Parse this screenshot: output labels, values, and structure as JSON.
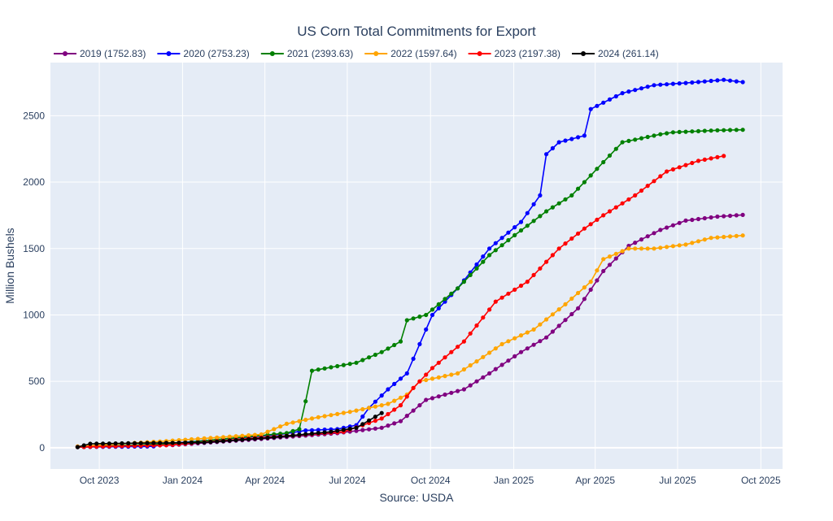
{
  "chart_data": {
    "type": "line",
    "title": "US Corn Total Commitments for Export",
    "xlabel": "Source: USDA",
    "ylabel": "Million Bushels",
    "ylim": [
      -160,
      2900
    ],
    "xlim": [
      "2023-08-08",
      "2025-10-25"
    ],
    "x_ticks": [
      {
        "date": "2023-10-01",
        "label": "Oct 2023"
      },
      {
        "date": "2024-01-01",
        "label": "Jan 2024"
      },
      {
        "date": "2024-04-01",
        "label": "Apr 2024"
      },
      {
        "date": "2024-07-01",
        "label": "Jul 2024"
      },
      {
        "date": "2024-10-01",
        "label": "Oct 2024"
      },
      {
        "date": "2025-01-01",
        "label": "Jan 2025"
      },
      {
        "date": "2025-04-01",
        "label": "Apr 2025"
      },
      {
        "date": "2025-07-01",
        "label": "Jul 2025"
      },
      {
        "date": "2025-10-01",
        "label": "Oct 2025"
      }
    ],
    "y_ticks": [
      0,
      500,
      1000,
      1500,
      2000,
      2500
    ],
    "grid": true,
    "legend_position": "top-left",
    "series": [
      {
        "name": "2019 (1752.83)",
        "color": "#800080",
        "anchors": [
          [
            "2023-09-07",
            5
          ],
          [
            "2023-12-21",
            20
          ],
          [
            "2024-04-04",
            70
          ],
          [
            "2024-06-20",
            110
          ],
          [
            "2024-08-08",
            150
          ],
          [
            "2024-08-29",
            200
          ],
          [
            "2024-09-12",
            280
          ],
          [
            "2024-09-26",
            360
          ],
          [
            "2024-11-07",
            440
          ],
          [
            "2024-12-05",
            560
          ],
          [
            "2025-01-09",
            720
          ],
          [
            "2025-02-06",
            830
          ],
          [
            "2025-03-13",
            1050
          ],
          [
            "2025-04-10",
            1330
          ],
          [
            "2025-05-08",
            1520
          ],
          [
            "2025-06-12",
            1640
          ],
          [
            "2025-07-10",
            1710
          ],
          [
            "2025-08-14",
            1740
          ],
          [
            "2025-09-11",
            1753
          ]
        ]
      },
      {
        "name": "2020 (2753.23)",
        "color": "#0000ff",
        "anchors": [
          [
            "2023-09-07",
            5
          ],
          [
            "2023-11-30",
            10
          ],
          [
            "2023-12-14",
            30
          ],
          [
            "2024-04-18",
            100
          ],
          [
            "2024-05-16",
            130
          ],
          [
            "2024-06-20",
            140
          ],
          [
            "2024-07-11",
            170
          ],
          [
            "2024-07-25",
            300
          ],
          [
            "2024-08-15",
            440
          ],
          [
            "2024-09-05",
            560
          ],
          [
            "2024-10-03",
            1000
          ],
          [
            "2024-10-31",
            1200
          ],
          [
            "2024-12-05",
            1500
          ],
          [
            "2025-01-09",
            1700
          ],
          [
            "2025-01-30",
            1900
          ],
          [
            "2025-02-06",
            2210
          ],
          [
            "2025-02-20",
            2300
          ],
          [
            "2025-03-20",
            2350
          ],
          [
            "2025-03-27",
            2550
          ],
          [
            "2025-05-01",
            2670
          ],
          [
            "2025-06-05",
            2730
          ],
          [
            "2025-07-17",
            2750
          ],
          [
            "2025-08-21",
            2770
          ],
          [
            "2025-09-11",
            2753
          ]
        ]
      },
      {
        "name": "2021 (2393.63)",
        "color": "#008000",
        "anchors": [
          [
            "2023-09-07",
            5
          ],
          [
            "2023-12-21",
            30
          ],
          [
            "2024-04-25",
            110
          ],
          [
            "2024-05-09",
            140
          ],
          [
            "2024-05-16",
            350
          ],
          [
            "2024-05-23",
            580
          ],
          [
            "2024-07-11",
            640
          ],
          [
            "2024-08-08",
            720
          ],
          [
            "2024-08-29",
            800
          ],
          [
            "2024-09-05",
            960
          ],
          [
            "2024-09-26",
            1000
          ],
          [
            "2024-10-31",
            1200
          ],
          [
            "2024-12-05",
            1450
          ],
          [
            "2025-01-02",
            1600
          ],
          [
            "2025-02-06",
            1780
          ],
          [
            "2025-03-06",
            1900
          ],
          [
            "2025-04-03",
            2100
          ],
          [
            "2025-05-01",
            2300
          ],
          [
            "2025-06-12",
            2360
          ],
          [
            "2025-06-26",
            2375
          ],
          [
            "2025-08-14",
            2390
          ],
          [
            "2025-09-11",
            2394
          ]
        ]
      },
      {
        "name": "2022 (1597.64)",
        "color": "#ffa500",
        "anchors": [
          [
            "2023-09-07",
            10
          ],
          [
            "2023-12-14",
            50
          ],
          [
            "2024-03-28",
            100
          ],
          [
            "2024-04-25",
            180
          ],
          [
            "2024-05-30",
            230
          ],
          [
            "2024-07-04",
            270
          ],
          [
            "2024-08-15",
            330
          ],
          [
            "2024-09-05",
            400
          ],
          [
            "2024-09-19",
            500
          ],
          [
            "2024-10-31",
            560
          ],
          [
            "2024-11-21",
            650
          ],
          [
            "2024-12-19",
            780
          ],
          [
            "2025-01-23",
            890
          ],
          [
            "2025-02-27",
            1080
          ],
          [
            "2025-03-27",
            1250
          ],
          [
            "2025-04-10",
            1420
          ],
          [
            "2025-05-08",
            1500
          ],
          [
            "2025-06-05",
            1500
          ],
          [
            "2025-07-10",
            1530
          ],
          [
            "2025-08-07",
            1580
          ],
          [
            "2025-09-11",
            1598
          ]
        ]
      },
      {
        "name": "2023 (2197.38)",
        "color": "#ff0000",
        "anchors": [
          [
            "2023-09-07",
            5
          ],
          [
            "2023-12-14",
            20
          ],
          [
            "2024-04-04",
            80
          ],
          [
            "2024-06-27",
            120
          ],
          [
            "2024-08-08",
            220
          ],
          [
            "2024-08-29",
            320
          ],
          [
            "2024-09-12",
            450
          ],
          [
            "2024-10-03",
            600
          ],
          [
            "2024-11-07",
            800
          ],
          [
            "2024-12-12",
            1100
          ],
          [
            "2025-01-16",
            1250
          ],
          [
            "2025-02-20",
            1500
          ],
          [
            "2025-03-20",
            1650
          ],
          [
            "2025-04-10",
            1750
          ],
          [
            "2025-05-15",
            1900
          ],
          [
            "2025-06-19",
            2080
          ],
          [
            "2025-07-24",
            2160
          ],
          [
            "2025-08-21",
            2197
          ]
        ]
      },
      {
        "name": "2024 (261.14)",
        "color": "#000000",
        "anchors": [
          [
            "2023-09-07",
            5
          ],
          [
            "2023-09-21",
            30
          ],
          [
            "2024-01-25",
            40
          ],
          [
            "2024-04-04",
            75
          ],
          [
            "2024-06-13",
            120
          ],
          [
            "2024-07-11",
            150
          ],
          [
            "2024-08-08",
            261
          ]
        ]
      }
    ]
  }
}
